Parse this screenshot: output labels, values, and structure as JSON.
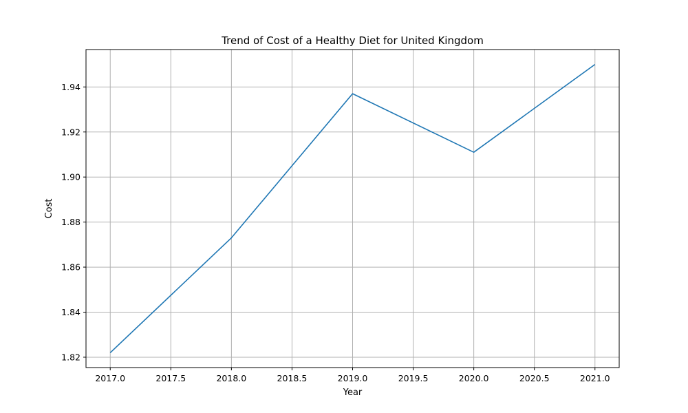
{
  "chart_data": {
    "type": "line",
    "title": "Trend of Cost of a Healthy Diet for United Kingdom",
    "xlabel": "Year",
    "ylabel": "Cost",
    "grid": true,
    "xlim": [
      2016.8,
      2021.2
    ],
    "ylim": [
      1.8154,
      1.9566
    ],
    "x_ticks": [
      2017.0,
      2017.5,
      2018.0,
      2018.5,
      2019.0,
      2019.5,
      2020.0,
      2020.5,
      2021.0
    ],
    "x_tick_labels": [
      "2017.0",
      "2017.5",
      "2018.0",
      "2018.5",
      "2019.0",
      "2019.5",
      "2020.0",
      "2020.5",
      "2021.0"
    ],
    "y_ticks": [
      1.82,
      1.84,
      1.86,
      1.88,
      1.9,
      1.92,
      1.94
    ],
    "y_tick_labels": [
      "1.82",
      "1.84",
      "1.86",
      "1.88",
      "1.90",
      "1.92",
      "1.94"
    ],
    "x": [
      2017,
      2018,
      2019,
      2020,
      2021
    ],
    "series": [
      {
        "values": [
          1.822,
          1.873,
          1.937,
          1.911,
          1.95
        ],
        "color": "#1f77b4"
      }
    ],
    "grid_color": "#b0b0b0"
  }
}
